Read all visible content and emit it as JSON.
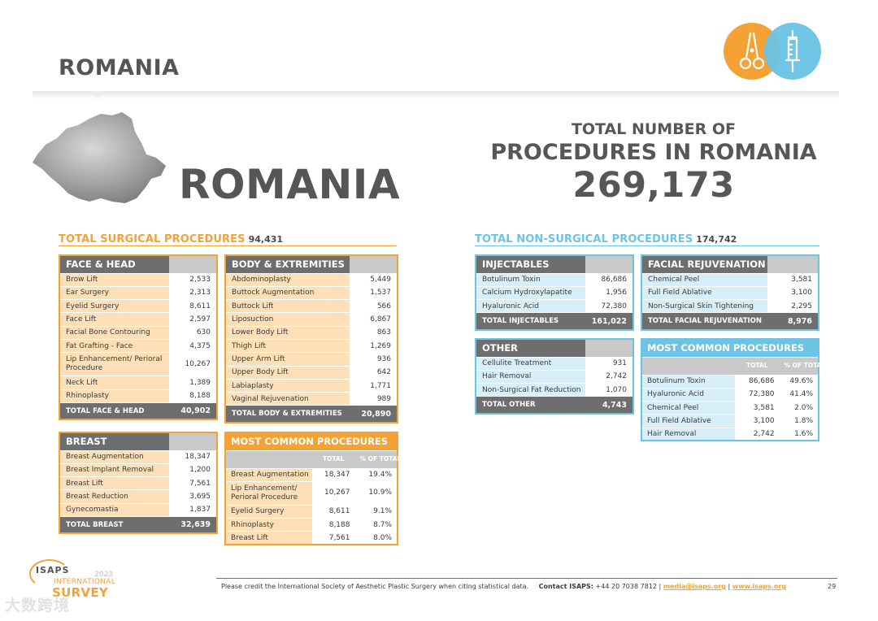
{
  "page": {
    "title": "ROMANIA",
    "country_big": "ROMANIA",
    "page_number": "29"
  },
  "total": {
    "line1": "TOTAL NUMBER OF",
    "line2": "PROCEDURES IN ROMANIA",
    "value": "269,173"
  },
  "colors": {
    "orange": "#f4a235",
    "blue": "#6cc3e4",
    "dark": "#6e6e6e",
    "gray": "#c9c9c9"
  },
  "badges": [
    {
      "icon": "scissors-icon",
      "color": "#f4a235"
    },
    {
      "icon": "syringe-icon",
      "color": "#6cc3e4"
    }
  ],
  "surgical": {
    "label": "TOTAL SURGICAL PROCEDURES",
    "total": "94,431",
    "face_head": {
      "title": "FACE & HEAD",
      "rows": [
        {
          "label": "Brow Lift",
          "value": "2,533"
        },
        {
          "label": "Ear Surgery",
          "value": "2,313"
        },
        {
          "label": "Eyelid Surgery",
          "value": "8,611"
        },
        {
          "label": "Face Lift",
          "value": "2,597"
        },
        {
          "label": "Facial Bone Contouring",
          "value": "630"
        },
        {
          "label": "Fat Grafting - Face",
          "value": "4,375"
        },
        {
          "label": "Lip Enhancement/ Perioral Procedure",
          "value": "10,267"
        },
        {
          "label": "Neck Lift",
          "value": "1,389"
        },
        {
          "label": "Rhinoplasty",
          "value": "8,188"
        }
      ],
      "total_label": "TOTAL FACE & HEAD",
      "total_value": "40,902"
    },
    "body": {
      "title": "BODY & EXTREMITIES",
      "rows": [
        {
          "label": "Abdominoplasty",
          "value": "5,449"
        },
        {
          "label": "Buttock Augmentation",
          "value": "1,537"
        },
        {
          "label": "Buttock Lift",
          "value": "566"
        },
        {
          "label": "Liposuction",
          "value": "6,867"
        },
        {
          "label": "Lower Body Lift",
          "value": "863"
        },
        {
          "label": "Thigh Lift",
          "value": "1,269"
        },
        {
          "label": "Upper Arm Lift",
          "value": "936"
        },
        {
          "label": "Upper Body Lift",
          "value": "642"
        },
        {
          "label": "Labiaplasty",
          "value": "1,771"
        },
        {
          "label": "Vaginal Rejuvenation",
          "value": "989"
        }
      ],
      "total_label": "TOTAL BODY & EXTREMITIES",
      "total_value": "20,890"
    },
    "breast": {
      "title": "BREAST",
      "rows": [
        {
          "label": "Breast Augmentation",
          "value": "18,347"
        },
        {
          "label": "Breast Implant Removal",
          "value": "1,200"
        },
        {
          "label": "Breast Lift",
          "value": "7,561"
        },
        {
          "label": "Breast Reduction",
          "value": "3,695"
        },
        {
          "label": "Gynecomastia",
          "value": "1,837"
        }
      ],
      "total_label": "TOTAL BREAST",
      "total_value": "32,639"
    },
    "most_common": {
      "title": "MOST COMMON PROCEDURES",
      "col_total": "TOTAL",
      "col_pct": "% OF TOTAL",
      "rows": [
        {
          "label": "Breast Augmentation",
          "total": "18,347",
          "pct": "19.4%"
        },
        {
          "label": "Lip Enhancement/ Perioral Procedure",
          "total": "10,267",
          "pct": "10.9%"
        },
        {
          "label": "Eyelid Surgery",
          "total": "8,611",
          "pct": "9.1%"
        },
        {
          "label": "Rhinoplasty",
          "total": "8,188",
          "pct": "8.7%"
        },
        {
          "label": "Breast Lift",
          "total": "7,561",
          "pct": "8.0%"
        }
      ]
    }
  },
  "nonsurgical": {
    "label": "TOTAL NON-SURGICAL PROCEDURES",
    "total": "174,742",
    "injectables": {
      "title": "INJECTABLES",
      "rows": [
        {
          "label": "Botulinum Toxin",
          "value": "86,686"
        },
        {
          "label": "Calcium Hydroxylapatite",
          "value": "1,956"
        },
        {
          "label": "Hyaluronic Acid",
          "value": "72,380"
        }
      ],
      "total_label": "TOTAL INJECTABLES",
      "total_value": "161,022"
    },
    "facial": {
      "title": "FACIAL REJUVENATION",
      "rows": [
        {
          "label": "Chemical Peel",
          "value": "3,581"
        },
        {
          "label": "Full Field Ablative",
          "value": "3,100"
        },
        {
          "label": "Non-Surgical Skin Tightening",
          "value": "2,295"
        }
      ],
      "total_label": "TOTAL FACIAL REJUVENATION",
      "total_value": "8,976"
    },
    "other": {
      "title": "OTHER",
      "rows": [
        {
          "label": "Cellulite Treatment",
          "value": "931"
        },
        {
          "label": "Hair Removal",
          "value": "2,742"
        },
        {
          "label": "Non-Surgical Fat Reduction",
          "value": "1,070"
        }
      ],
      "total_label": "TOTAL OTHER",
      "total_value": "4,743"
    },
    "most_common": {
      "title": "MOST COMMON PROCEDURES",
      "col_total": "TOTAL",
      "col_pct": "% OF TOTAL",
      "rows": [
        {
          "label": "Botulinum Toxin",
          "total": "86,686",
          "pct": "49.6%"
        },
        {
          "label": "Hyaluronic Acid",
          "total": "72,380",
          "pct": "41.4%"
        },
        {
          "label": "Chemical Peel",
          "total": "3,581",
          "pct": "2.0%"
        },
        {
          "label": "Full Field Ablative",
          "total": "3,100",
          "pct": "1.8%"
        },
        {
          "label": "Hair Removal",
          "total": "2,742",
          "pct": "1.6%"
        }
      ]
    }
  },
  "logo": {
    "name": "ISAPS",
    "year": "2023",
    "line1": "INTERNATIONAL",
    "line2": "SURVEY"
  },
  "footer": {
    "credit": "Please credit the International Society of Aesthetic Plastic Surgery when citing statistical data.",
    "contact_label": "Contact ISAPS:",
    "phone": "+44 20 7038 7812",
    "sep1": "|",
    "email": "media@isaps.org",
    "sep2": "|",
    "website": "www.isaps.org"
  },
  "watermark": "大数跨境"
}
